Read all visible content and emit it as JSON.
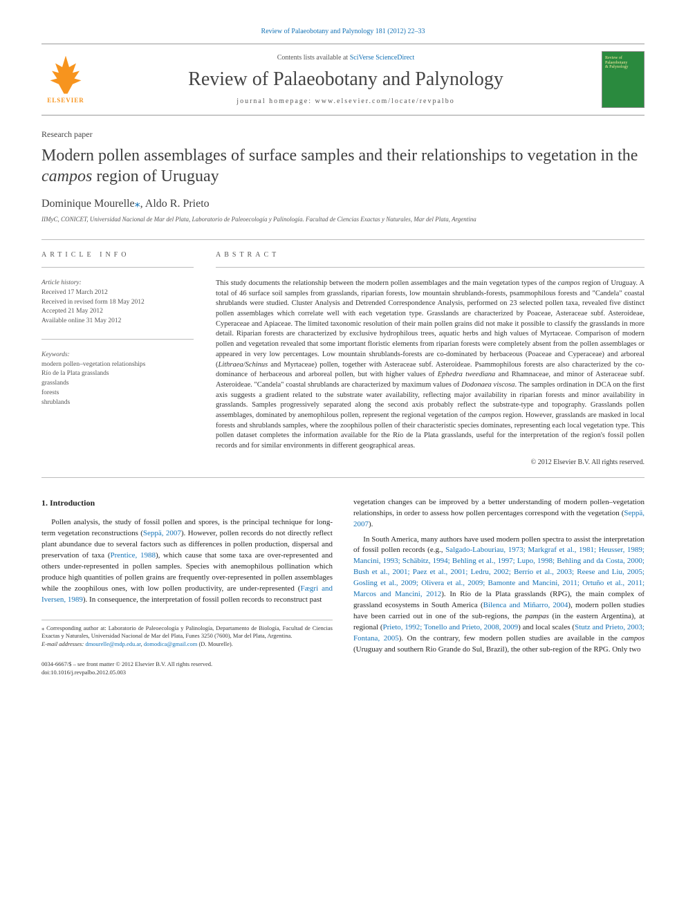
{
  "header": {
    "citation_link": "Review of Palaeobotany and Palynology 181 (2012) 22–33",
    "contents_prefix": "Contents lists available at ",
    "contents_link": "SciVerse ScienceDirect",
    "journal_title": "Review of Palaeobotany and Palynology",
    "homepage_prefix": "journal homepage: ",
    "homepage_url": "www.elsevier.com/locate/revpalbo",
    "elsevier_label": "ELSEVIER",
    "cover_line1": "Review of",
    "cover_line2": "Palaeobotany",
    "cover_line3": "& Palynology"
  },
  "paper": {
    "type": "Research paper",
    "title_pre": "Modern pollen assemblages of surface samples and their relationships to vegetation in the ",
    "title_italic": "campos",
    "title_post": " region of Uruguay",
    "authors": "Dominique Mourelle",
    "authors_sep": ", ",
    "author2": "Aldo R. Prieto",
    "cor_marker": "⁎",
    "affiliation": "IIMyC, CONICET, Universidad Nacional de Mar del Plata, Laboratorio de Paleoecología y Palinología. Facultad de Ciencias Exactas y Naturales, Mar del Plata, Argentina"
  },
  "article_info": {
    "label": "article info",
    "history_hdr": "Article history:",
    "received": "Received 17 March 2012",
    "revised": "Received in revised form 18 May 2012",
    "accepted": "Accepted 21 May 2012",
    "online": "Available online 31 May 2012",
    "keywords_hdr": "Keywords:",
    "kw1": "modern pollen–vegetation relationships",
    "kw2": "Río de la Plata grasslands",
    "kw3": "grasslands",
    "kw4": "forests",
    "kw5": "shrublands"
  },
  "abstract": {
    "label": "abstract",
    "text_parts": [
      "This study documents the relationship between the modern pollen assemblages and the main vegetation types of the ",
      "campos",
      " region of Uruguay. A total of 46 surface soil samples from grasslands, riparian forests, low mountain shrublands-forests, psammophilous forests and \"Candela\" coastal shrublands were studied. Cluster Analysis and Detrended Correspondence Analysis, performed on 23 selected pollen taxa, revealed five distinct pollen assemblages which correlate well with each vegetation type. Grasslands are characterized by Poaceae, Asteraceae subf. Asteroideae, Cyperaceae and Apiaceae. The limited taxonomic resolution of their main pollen grains did not make it possible to classify the grasslands in more detail. Riparian forests are characterized by exclusive hydrophilous trees, aquatic herbs and high values of Myrtaceae. Comparison of modern pollen and vegetation revealed that some important floristic elements from riparian forests were completely absent from the pollen assemblages or appeared in very low percentages. Low mountain shrublands-forests are co-dominated by herbaceous (Poaceae and Cyperaceae) and arboreal (",
      "Lithraea/Schinus",
      " and Myrtaceae) pollen, together with Asteraceae subf. Asteroideae. Psammophilous forests are also characterized by the co-dominance of herbaceous and arboreal pollen, but with higher values of ",
      "Ephedra tweediana",
      " and Rhamnaceae, and minor of Asteraceae subf. Asteroideae. \"Candela\" coastal shrublands are characterized by maximum values of ",
      "Dodonaea viscosa",
      ". The samples ordination in DCA on the first axis suggests a gradient related to the substrate water availability, reflecting major availability in riparian forests and minor availability in grasslands. Samples progressively separated along the second axis probably reflect the substrate-type and topography. Grasslands pollen assemblages, dominated by anemophilous pollen, represent the regional vegetation of the ",
      "campos",
      " region. However, grasslands are masked in local forests and shrublands samples, where the zoophilous pollen of their characteristic species dominates, representing each local vegetation type. This pollen dataset completes the information available for the Río de la Plata grasslands, useful for the interpretation of the region's fossil pollen records and for similar environments in different geographical areas."
    ],
    "copyright": "© 2012 Elsevier B.V. All rights reserved."
  },
  "body": {
    "section_title": "1. Introduction",
    "p1_a": "Pollen analysis, the study of fossil pollen and spores, is the principal technique for long-term vegetation reconstructions (",
    "p1_ref1": "Seppä, 2007",
    "p1_b": "). However, pollen records do not directly reflect plant abundance due to several factors such as differences in pollen production, dispersal and preservation of taxa (",
    "p1_ref2": "Prentice, 1988",
    "p1_c": "), which cause that some taxa are over-represented and others under-represented in pollen samples. Species with anemophilous pollination which produce high quantities of pollen grains are frequently over-represented in pollen assemblages while the zoophilous ones, with low pollen productivity, are under-represented (",
    "p1_ref3": "Fægri and Iversen, 1989",
    "p1_d": "). In consequence, the interpretation of fossil pollen records to reconstruct past",
    "p2_a": "vegetation changes can be improved by a better understanding of modern pollen–vegetation relationships, in order to assess how pollen percentages correspond with the vegetation (",
    "p2_ref1": "Seppä, 2007",
    "p2_b": ").",
    "p3_a": "In South America, many authors have used modern pollen spectra to assist the interpretation of fossil pollen records (e.g., ",
    "p3_ref1": "Salgado-Labouriau, 1973; Markgraf et al., 1981; Heusser, 1989; Mancini, 1993; Schäbitz, 1994; Behling et al., 1997; Lupo, 1998; Behling and da Costa, 2000; Bush et al., 2001; Paez et al., 2001; Ledru, 2002; Berrío et al., 2003; Reese and Liu, 2005; Gosling et al., 2009; Olivera et al., 2009; Bamonte and Mancini, 2011; Ortuño et al., 2011; Marcos and Mancini, 2012",
    "p3_b": "). In Río de la Plata grasslands (RPG), the main complex of grassland ecosystems in South America (",
    "p3_ref2": "Bilenca and Miñarro, 2004",
    "p3_c": "), modern pollen studies have been carried out in one of the sub-regions, the ",
    "p3_italic": "pampas",
    "p3_d": " (in the eastern Argentina), at regional (",
    "p3_ref3": "Prieto, 1992; Tonello and Prieto, 2008, 2009",
    "p3_e": ") and local scales (",
    "p3_ref4": "Stutz and Prieto, 2003; Fontana, 2005",
    "p3_f": "). On the contrary, few modern pollen studies are available in the ",
    "p3_italic2": "campos",
    "p3_g": " (Uruguay and southern Rio Grande do Sul, Brazil), the other sub-region of the RPG. Only two"
  },
  "footnote": {
    "cor_text": "⁎ Corresponding author at: Laboratorio de Paleoecología y Palinología, Departamento de Biología, Facultad de Ciencias Exactas y Naturales, Universidad Nacional de Mar del Plata, Funes 3250 (7600), Mar del Plata, Argentina.",
    "email_label": "E-mail addresses:",
    "email1": "dmourelle@mdp.edu.ar",
    "email_sep": ", ",
    "email2": "domodica@gmail.com",
    "email_suffix": " (D. Mourelle)."
  },
  "footer": {
    "line1": "0034-6667/$ – see front matter © 2012 Elsevier B.V. All rights reserved.",
    "line2": "doi:10.1016/j.revpalbo.2012.05.003"
  },
  "colors": {
    "link": "#1371b5",
    "elsevier_orange": "#f7941e",
    "cover_green": "#2a8a3e",
    "cover_text": "#f4e8a0",
    "text_main": "#333333",
    "text_muted": "#555555",
    "rule": "#bbbbbb"
  }
}
